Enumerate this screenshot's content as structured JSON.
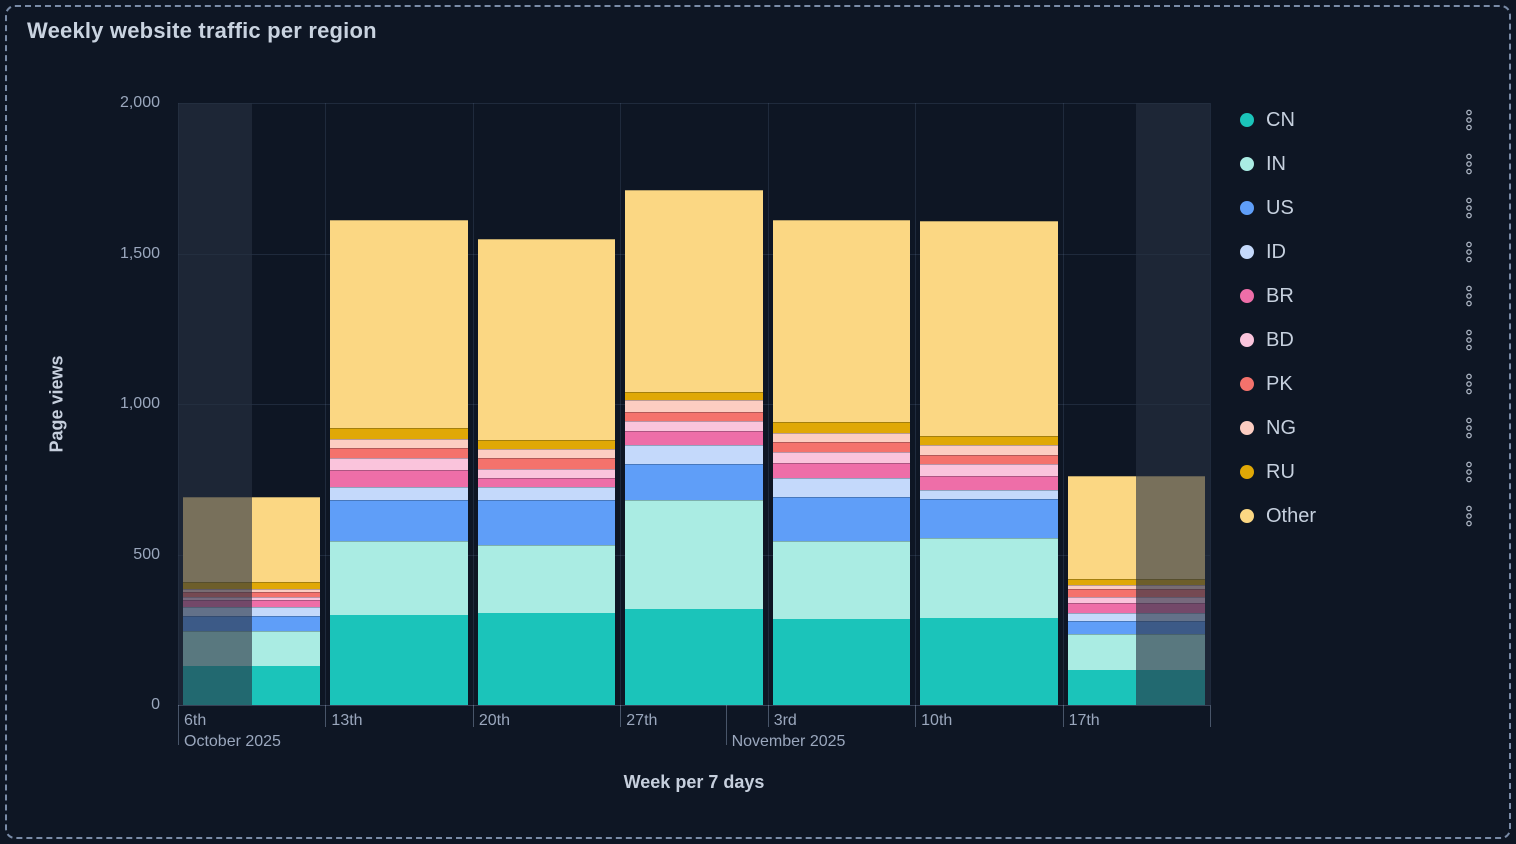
{
  "panel": {
    "title": "Weekly website traffic per region"
  },
  "chart_data": {
    "type": "bar",
    "stacked": true,
    "title": "Weekly website traffic per region",
    "xlabel": "Week per 7 days",
    "ylabel": "Page views",
    "ylim": [
      0,
      2000
    ],
    "grid": true,
    "legend_position": "right",
    "y_ticks": [
      {
        "label": "0",
        "value": 0
      },
      {
        "label": "500",
        "value": 500
      },
      {
        "label": "1,000",
        "value": 1000
      },
      {
        "label": "1,500",
        "value": 1500
      },
      {
        "label": "2,000",
        "value": 2000
      }
    ],
    "categories": [
      "6th",
      "13th",
      "20th",
      "27th",
      "3rd",
      "10th",
      "17th"
    ],
    "month_boundaries": [
      {
        "label": "October 2025",
        "week_index": 0,
        "day_offset": 0
      },
      {
        "label": "November 2025",
        "week_index": 3,
        "day_offset": 5
      }
    ],
    "series": [
      {
        "name": "CN",
        "color": "#1BC4BA",
        "values": [
          130,
          300,
          305,
          320,
          285,
          290,
          115
        ]
      },
      {
        "name": "IN",
        "color": "#AAECE3",
        "values": [
          115,
          245,
          225,
          360,
          260,
          265,
          120
        ]
      },
      {
        "name": "US",
        "color": "#5F9EF8",
        "values": [
          50,
          135,
          150,
          120,
          145,
          130,
          45
        ]
      },
      {
        "name": "ID",
        "color": "#C4D9FB",
        "values": [
          30,
          45,
          45,
          65,
          65,
          30,
          25
        ]
      },
      {
        "name": "BR",
        "color": "#EE6EA8",
        "values": [
          25,
          55,
          30,
          45,
          50,
          45,
          35
        ]
      },
      {
        "name": "BD",
        "color": "#FAC4DC",
        "values": [
          10,
          40,
          30,
          35,
          35,
          40,
          20
        ]
      },
      {
        "name": "PK",
        "color": "#F4726C",
        "values": [
          15,
          35,
          35,
          30,
          35,
          30,
          25
        ]
      },
      {
        "name": "NG",
        "color": "#FCCDC2",
        "values": [
          10,
          30,
          30,
          40,
          30,
          35,
          15
        ]
      },
      {
        "name": "RU",
        "color": "#E0A806",
        "values": [
          25,
          35,
          30,
          25,
          35,
          30,
          20
        ]
      },
      {
        "name": "Other",
        "color": "#FBD783",
        "values": [
          280,
          690,
          670,
          670,
          670,
          715,
          340
        ]
      }
    ],
    "totals": [
      690,
      1610,
      1550,
      1710,
      1610,
      1610,
      760
    ],
    "out_of_range_dimmed": [
      {
        "bar": "6th",
        "half": "left"
      },
      {
        "bar": "17th",
        "half": "right"
      }
    ]
  },
  "legend": {
    "menu_icon": "kebab-menu-icon"
  },
  "theme": {
    "background": "#0E1624",
    "panel_border_dashed": "#8CA0BE",
    "title_text": "#C9D3E0",
    "axis_title_text": "#C6CFDD",
    "tick_text": "#9AA7BD",
    "legend_text": "#C6D0DE",
    "grid_line": "rgba(125,148,188,0.16)",
    "axis_line": "rgba(160,180,215,0.28)",
    "tick_mark": "rgba(160,180,210,0.40)",
    "out_of_range_overlay": "rgba(38,48,66,0.62)",
    "menu_icon_color": "#A9B2C0"
  }
}
